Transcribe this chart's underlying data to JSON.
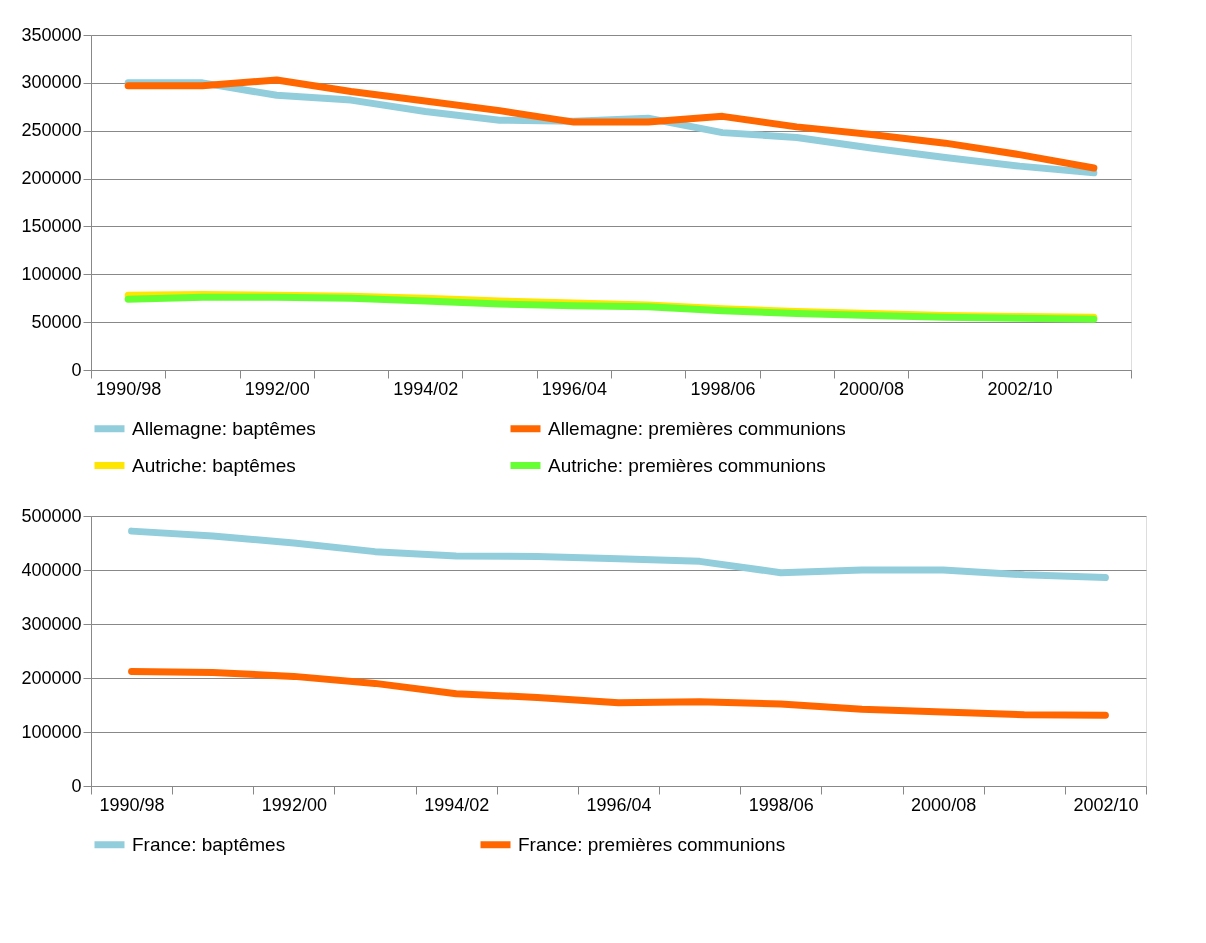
{
  "chart_data": [
    {
      "type": "line",
      "categories": [
        "1990/98",
        null,
        "1992/00",
        null,
        "1994/02",
        null,
        "1996/04",
        null,
        "1998/06",
        null,
        "2000/08",
        null,
        "2002/10",
        null
      ],
      "ylim": [
        0,
        350000
      ],
      "yticks": [
        0,
        50000,
        100000,
        150000,
        200000,
        250000,
        300000,
        350000
      ],
      "grid": "y",
      "legend": "bottom",
      "series": [
        {
          "name": "Allemagne: baptêmes",
          "color": "#92cddc",
          "values": [
            300000,
            300000,
            287000,
            282000,
            270000,
            261000,
            260000,
            263000,
            248000,
            243000,
            232000,
            222000,
            213000,
            206000
          ]
        },
        {
          "name": "Allemagne: premières communions",
          "color": "#ff6600",
          "values": [
            297000,
            297000,
            303000,
            291000,
            281000,
            271000,
            259000,
            259000,
            265000,
            254000,
            246000,
            237000,
            225000,
            211000
          ]
        },
        {
          "name": "Autriche: baptêmes",
          "color": "#ffe600",
          "values": [
            78000,
            79000,
            78000,
            77000,
            75000,
            72000,
            70000,
            68000,
            64000,
            61000,
            59000,
            57000,
            56000,
            55000
          ]
        },
        {
          "name": "Autriche: premières communions",
          "color": "#66ff33",
          "values": [
            74000,
            76000,
            76000,
            75000,
            72000,
            69000,
            67000,
            66000,
            62000,
            59000,
            57000,
            55000,
            54000,
            53000
          ]
        }
      ]
    },
    {
      "type": "line",
      "categories": [
        "1990/98",
        null,
        "1992/00",
        null,
        "1994/02",
        null,
        "1996/04",
        null,
        "1998/06",
        null,
        "2000/08",
        null,
        "2002/10"
      ],
      "ylim": [
        0,
        500000
      ],
      "yticks": [
        0,
        100000,
        200000,
        300000,
        400000,
        500000
      ],
      "grid": "y",
      "legend": "bottom",
      "series": [
        {
          "name": "France: baptêmes",
          "color": "#92cddc",
          "values": [
            472000,
            463000,
            450000,
            434000,
            426000,
            425000,
            421000,
            416000,
            395000,
            400000,
            400000,
            391000,
            386000
          ]
        },
        {
          "name": "France: premières communions",
          "color": "#ff6600",
          "values": [
            212000,
            210000,
            203000,
            190000,
            171000,
            164000,
            154000,
            156000,
            152000,
            142000,
            137000,
            132000,
            131000
          ]
        }
      ]
    }
  ]
}
